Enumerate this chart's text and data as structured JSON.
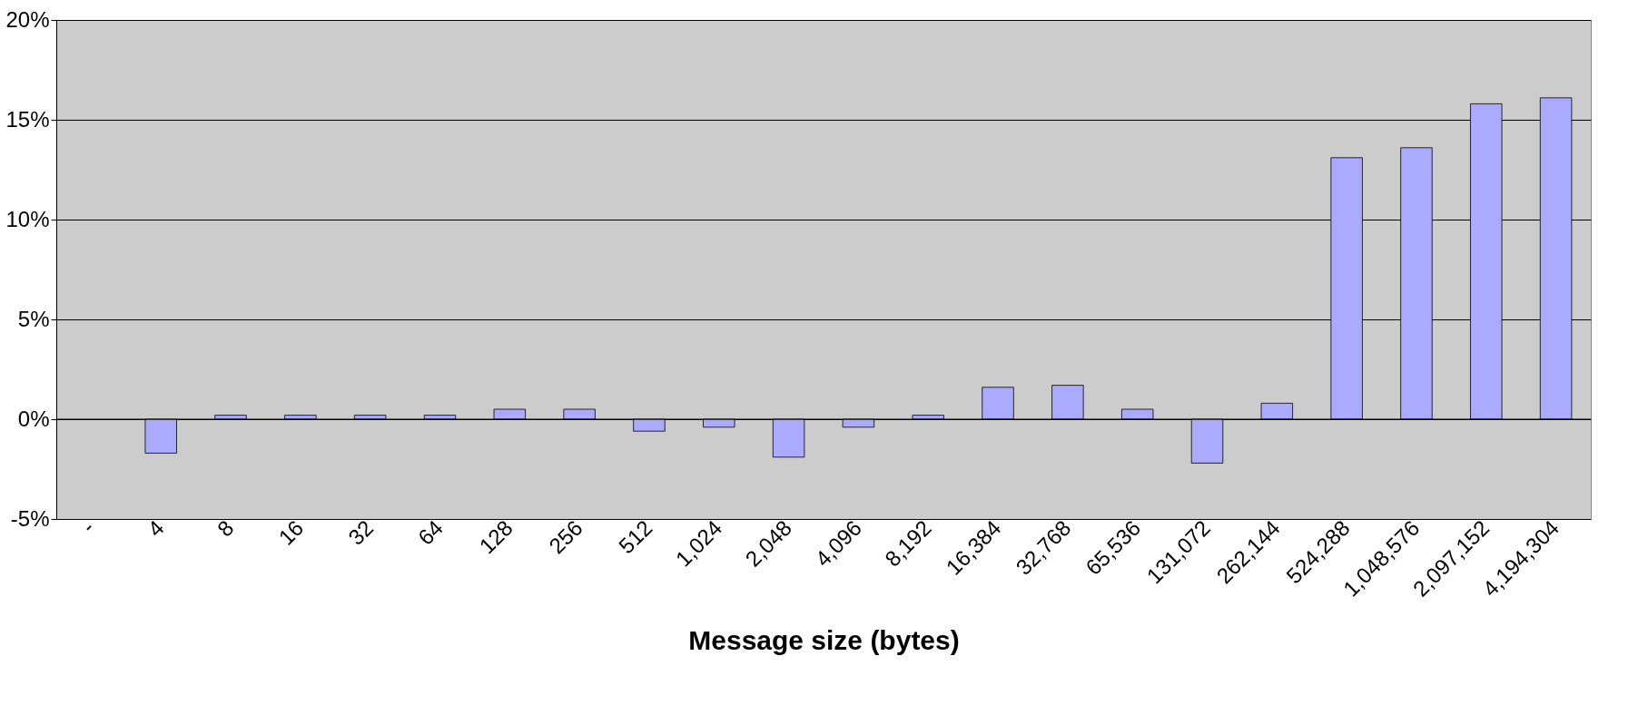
{
  "chart_data": {
    "type": "bar",
    "xlabel": "Message size (bytes)",
    "categories": [
      "-",
      "4",
      "8",
      "16",
      "32",
      "64",
      "128",
      "256",
      "512",
      "1,024",
      "2,048",
      "4,096",
      "8,192",
      "16,384",
      "32,768",
      "65,536",
      "131,072",
      "262,144",
      "524,288",
      "1,048,576",
      "2,097,152",
      "4,194,304"
    ],
    "values": [
      null,
      -1.7,
      0.2,
      0.2,
      0.2,
      0.2,
      0.5,
      0.5,
      -0.6,
      -0.4,
      -1.9,
      -0.4,
      0.2,
      1.6,
      1.7,
      0.5,
      -2.2,
      0.8,
      13.1,
      13.6,
      15.8,
      16.1
    ],
    "color": "#aaaaff",
    "ylim": [
      -5,
      20
    ],
    "yticks": [
      {
        "value": -5,
        "label": "-5%"
      },
      {
        "value": 0,
        "label": "0%"
      },
      {
        "value": 5,
        "label": "5%"
      },
      {
        "value": 10,
        "label": "10%"
      },
      {
        "value": 15,
        "label": "15%"
      },
      {
        "value": 20,
        "label": "20%"
      }
    ],
    "grid": "y"
  }
}
